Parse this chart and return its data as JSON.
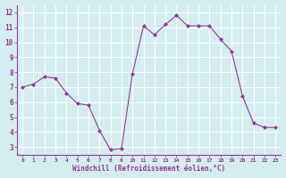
{
  "x": [
    0,
    1,
    2,
    3,
    4,
    5,
    6,
    7,
    8,
    9,
    10,
    11,
    12,
    13,
    14,
    15,
    16,
    17,
    18,
    19,
    20,
    21,
    22,
    23
  ],
  "y": [
    7.0,
    7.2,
    7.7,
    7.6,
    6.6,
    5.9,
    5.8,
    4.1,
    2.8,
    2.9,
    7.9,
    11.1,
    10.5,
    11.2,
    11.8,
    11.1,
    11.1,
    11.1,
    10.2,
    9.4,
    6.4,
    4.6,
    4.3,
    4.3
  ],
  "line_color": "#993399",
  "marker": "D",
  "marker_size": 2.0,
  "bg_color": "#d4eef0",
  "grid_color": "#ffffff",
  "tick_color": "#993399",
  "xlabel": "Windchill (Refroidissement éolien,°C)",
  "xlabel_color": "#993399",
  "ylabel_ticks": [
    3,
    4,
    5,
    6,
    7,
    8,
    9,
    10,
    11,
    12
  ],
  "xticks": [
    0,
    1,
    2,
    3,
    4,
    5,
    6,
    7,
    8,
    9,
    10,
    11,
    12,
    13,
    14,
    15,
    16,
    17,
    18,
    19,
    20,
    21,
    22,
    23
  ],
  "ylim": [
    2.5,
    12.5
  ],
  "xlim": [
    -0.5,
    23.5
  ],
  "spine_color": "#993399"
}
